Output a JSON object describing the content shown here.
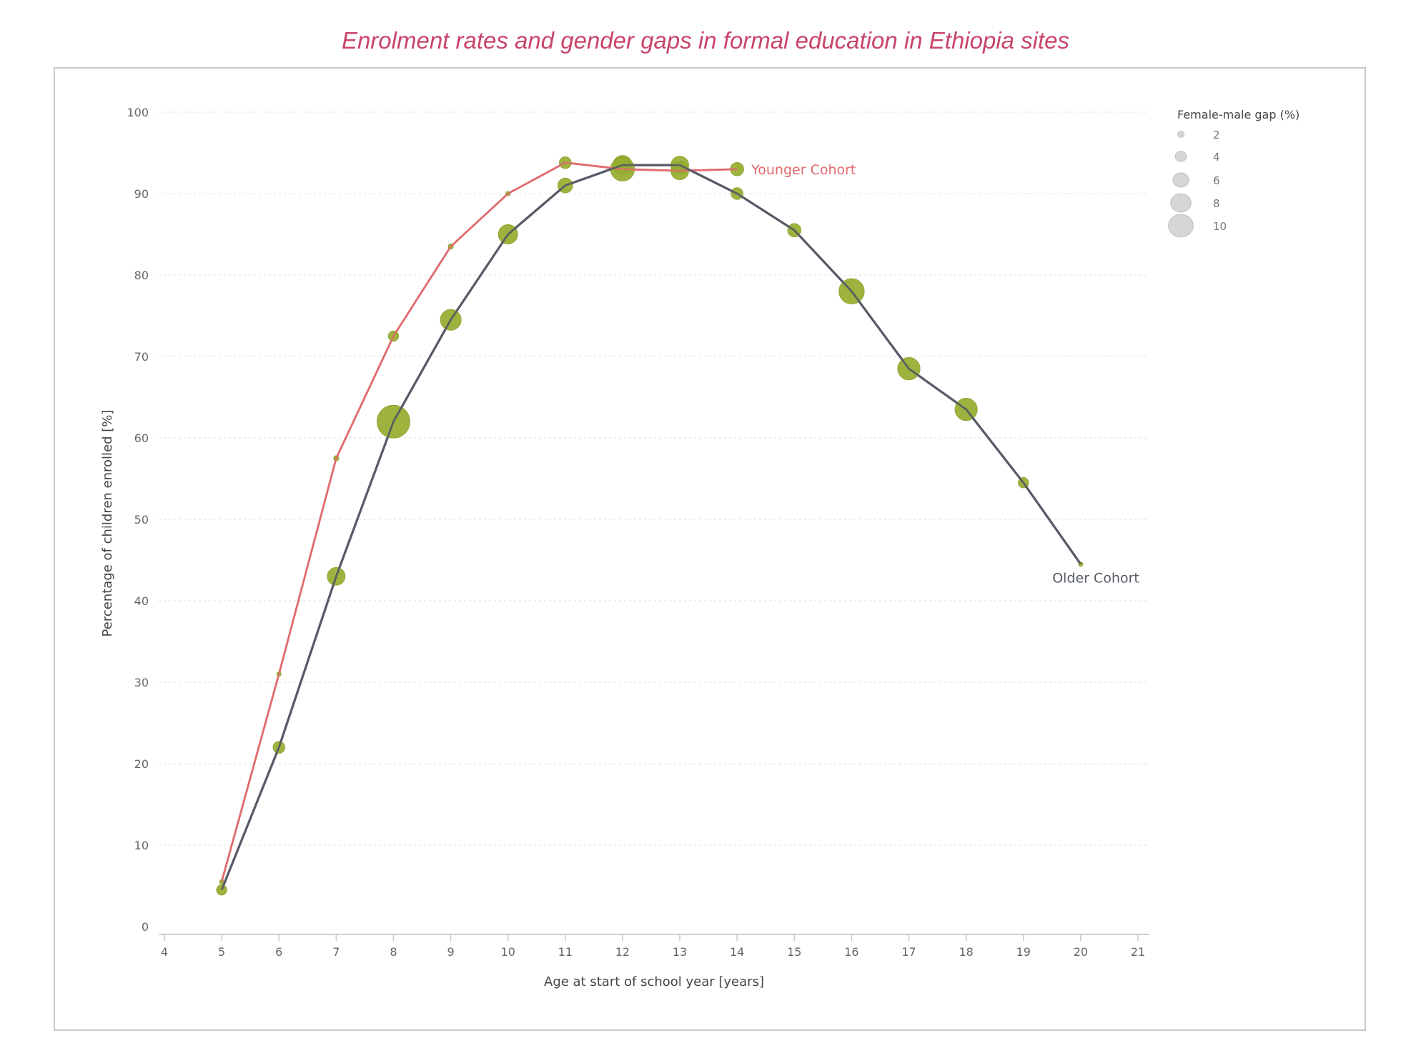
{
  "chart_data": {
    "type": "line",
    "title": "Enrolment rates and gender gaps in formal education in Ethiopia sites",
    "xlabel": "Age at start of school year [years]",
    "ylabel": "Percentage of children enrolled [%]",
    "xlim": [
      4,
      21
    ],
    "ylim": [
      0,
      100
    ],
    "xticks": [
      "4",
      "5",
      "6",
      "7",
      "8",
      "9",
      "10",
      "11",
      "12",
      "13",
      "14",
      "15",
      "16",
      "17",
      "18",
      "19",
      "20",
      "21"
    ],
    "yticks": [
      "0",
      "10",
      "20",
      "30",
      "40",
      "50",
      "60",
      "70",
      "80",
      "90",
      "100"
    ],
    "grid": true,
    "legend": {
      "title": "Female-male gap (%)",
      "placement": "top-right",
      "sizes": [
        "2",
        "4",
        "6",
        "8",
        "10"
      ]
    },
    "colors": {
      "younger": "#e06a6e",
      "older": "#555a66",
      "bubble": "#96ad2e",
      "legend_bubble": "#d6d6d6",
      "title": "#c8456a"
    },
    "series": [
      {
        "name": "Younger Cohort",
        "x": [
          5,
          6,
          7,
          8,
          9,
          10,
          11,
          12,
          13,
          14
        ],
        "y": [
          5.5,
          31,
          57.5,
          72.5,
          83.5,
          90,
          93.8,
          93,
          92.8,
          93
        ],
        "gap": [
          0.5,
          0.5,
          0.8,
          2.5,
          0.8,
          0.5,
          3,
          7,
          5,
          3.5
        ]
      },
      {
        "name": "Older Cohort",
        "x": [
          5,
          6,
          7,
          8,
          9,
          10,
          11,
          12,
          13,
          14,
          15,
          16,
          17,
          18,
          19,
          20
        ],
        "y": [
          4.5,
          22,
          43,
          62,
          74.5,
          85,
          91,
          93.5,
          93.5,
          90,
          85.5,
          78,
          68.5,
          63.5,
          54.5,
          44.5
        ],
        "gap": [
          2.5,
          3,
          5,
          10,
          6,
          5.5,
          4,
          5.5,
          5,
          3,
          3.5,
          7.5,
          6.5,
          6.5,
          2.5,
          0.5
        ]
      }
    ]
  }
}
